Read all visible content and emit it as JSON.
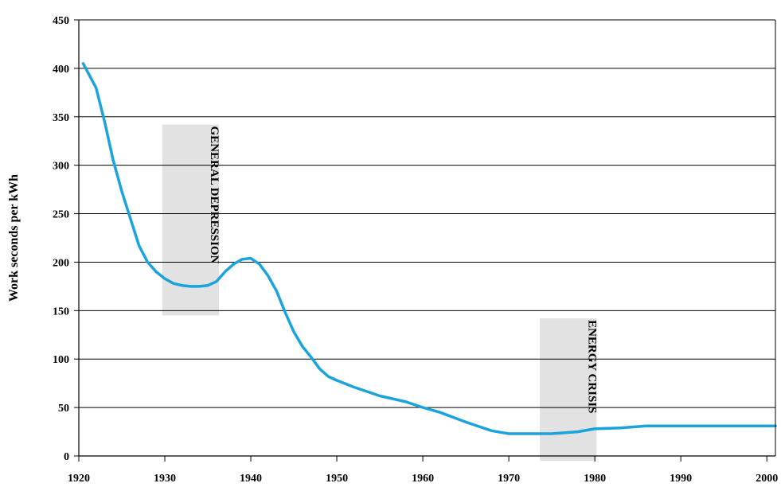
{
  "chart_data": {
    "type": "line",
    "title": "",
    "xlabel": "",
    "ylabel": "Work seconds per kWh",
    "xlim": [
      1920,
      2001
    ],
    "ylim": [
      0,
      450
    ],
    "x_ticks": [
      1920,
      1930,
      1940,
      1950,
      1960,
      1970,
      1980,
      1990,
      2000
    ],
    "y_ticks": [
      0,
      50,
      100,
      150,
      200,
      250,
      300,
      350,
      400,
      450
    ],
    "grid": "horizontal",
    "legend": "none",
    "series": [
      {
        "color": "#1aa3dc",
        "x": [
          1920.5,
          1922,
          1923,
          1924,
          1925,
          1926,
          1927,
          1928,
          1928.5,
          1929,
          1930,
          1931,
          1932,
          1933,
          1934,
          1935,
          1936,
          1937,
          1938,
          1939,
          1940,
          1941,
          1942,
          1943,
          1944,
          1945,
          1946,
          1947,
          1948,
          1949,
          1950,
          1952,
          1955,
          1958,
          1960,
          1962,
          1965,
          1968,
          1970,
          1972,
          1975,
          1978,
          1980,
          1983,
          1986,
          1990,
          1995,
          2000,
          2001
        ],
        "values": [
          405,
          380,
          345,
          305,
          273,
          245,
          217,
          200,
          195,
          190,
          183,
          178,
          176,
          175,
          175,
          176,
          180,
          190,
          198,
          203,
          204,
          198,
          186,
          170,
          148,
          128,
          113,
          102,
          90,
          82,
          78,
          71,
          62,
          56,
          50,
          45,
          35,
          26,
          23,
          23,
          23,
          25,
          28,
          29,
          31,
          31,
          31,
          31,
          31
        ]
      }
    ],
    "annotations": [
      {
        "label": "GENERAL DEPRESSION",
        "x_start": 1929.7,
        "x_end": 1936.3,
        "y_bottom": 145,
        "y_top": 342
      },
      {
        "label": "ENERGY CRISIS",
        "x_start": 1973.6,
        "x_end": 1980.2,
        "y_bottom": -5,
        "y_top": 142
      }
    ]
  }
}
